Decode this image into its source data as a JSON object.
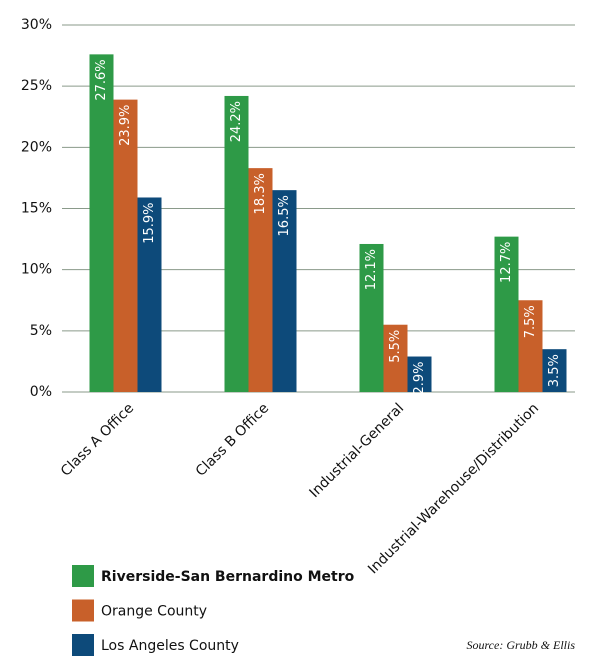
{
  "chart_data": {
    "type": "bar",
    "categories": [
      "Class A Office",
      "Class B Office",
      "Industrial-General",
      "Industrial-Warehouse/Distribution"
    ],
    "series": [
      {
        "name": "Riverside-San Bernardino Metro",
        "color": "#2e9a47",
        "values": [
          27.6,
          24.2,
          12.1,
          12.7
        ],
        "value_labels": [
          "27.6%",
          "24.2%",
          "12.1%",
          "12.7%"
        ]
      },
      {
        "name": "Orange County",
        "color": "#c8602a",
        "values": [
          23.9,
          18.3,
          5.5,
          7.5
        ],
        "value_labels": [
          "23.9%",
          "18.3%",
          "5.5%",
          "7.5%"
        ]
      },
      {
        "name": "Los Angeles County",
        "color": "#0d4a7a",
        "values": [
          15.9,
          16.5,
          2.9,
          3.5
        ],
        "value_labels": [
          "15.9%",
          "16.5%",
          "2.9%",
          "3.5%"
        ]
      }
    ],
    "ylim": [
      0,
      30
    ],
    "yticks": [
      {
        "value": 0,
        "label": "0%"
      },
      {
        "value": 5,
        "label": "5%"
      },
      {
        "value": 10,
        "label": "10%"
      },
      {
        "value": 15,
        "label": "15%"
      },
      {
        "value": 20,
        "label": "20%"
      },
      {
        "value": 25,
        "label": "25%"
      },
      {
        "value": 30,
        "label": "30%"
      }
    ],
    "grid": true,
    "source": "Source: Grubb & Ellis"
  }
}
